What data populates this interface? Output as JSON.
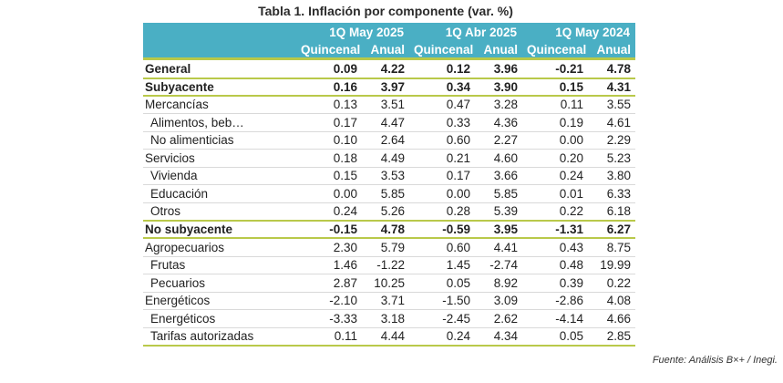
{
  "title": "Tabla 1. Inflación por componente (var. %)",
  "periods": [
    "1Q May 2025",
    "1Q Abr 2025",
    "1Q May 2024"
  ],
  "subheaders": [
    "Quincenal",
    "Anual",
    "Quincenal",
    "Anual",
    "Quincenal",
    "Anual"
  ],
  "rows": [
    {
      "label": "General",
      "values": [
        "0.09",
        "4.22",
        "0.12",
        "3.96",
        "-0.21",
        "4.78"
      ]
    },
    {
      "label": "Subyacente",
      "values": [
        "0.16",
        "3.97",
        "0.34",
        "3.90",
        "0.15",
        "4.31"
      ]
    },
    {
      "label": "Mercancías",
      "values": [
        "0.13",
        "3.51",
        "0.47",
        "3.28",
        "0.11",
        "3.55"
      ]
    },
    {
      "label": "Alimentos, beb…",
      "values": [
        "0.17",
        "4.47",
        "0.33",
        "4.36",
        "0.19",
        "4.61"
      ]
    },
    {
      "label": "No alimenticias",
      "values": [
        "0.10",
        "2.64",
        "0.60",
        "2.27",
        "0.00",
        "2.29"
      ]
    },
    {
      "label": "Servicios",
      "values": [
        "0.18",
        "4.49",
        "0.21",
        "4.60",
        "0.20",
        "5.23"
      ]
    },
    {
      "label": "Vivienda",
      "values": [
        "0.15",
        "3.53",
        "0.17",
        "3.66",
        "0.24",
        "3.80"
      ]
    },
    {
      "label": "Educación",
      "values": [
        "0.00",
        "5.85",
        "0.00",
        "5.85",
        "0.01",
        "6.33"
      ]
    },
    {
      "label": "Otros",
      "values": [
        "0.24",
        "5.26",
        "0.28",
        "5.39",
        "0.22",
        "6.18"
      ]
    },
    {
      "label": "No subyacente",
      "values": [
        "-0.15",
        "4.78",
        "-0.59",
        "3.95",
        "-1.31",
        "6.27"
      ]
    },
    {
      "label": "Agropecuarios",
      "values": [
        "2.30",
        "5.79",
        "0.60",
        "4.41",
        "0.43",
        "8.75"
      ]
    },
    {
      "label": "Frutas",
      "values": [
        "1.46",
        "-1.22",
        "1.45",
        "-2.74",
        "0.48",
        "19.99"
      ]
    },
    {
      "label": "Pecuarios",
      "values": [
        "2.87",
        "10.25",
        "0.05",
        "8.92",
        "0.39",
        "0.22"
      ]
    },
    {
      "label": "Energéticos",
      "values": [
        "-2.10",
        "3.71",
        "-1.50",
        "3.09",
        "-2.86",
        "4.08"
      ]
    },
    {
      "label": "Energéticos",
      "values": [
        "-3.33",
        "3.18",
        "-2.45",
        "2.62",
        "-4.14",
        "4.66"
      ]
    },
    {
      "label": "Tarifas autorizadas",
      "values": [
        "0.11",
        "4.44",
        "0.24",
        "4.34",
        "0.05",
        "2.85"
      ]
    }
  ],
  "source": "Fuente: Análisis B×+ /  Inegi."
}
